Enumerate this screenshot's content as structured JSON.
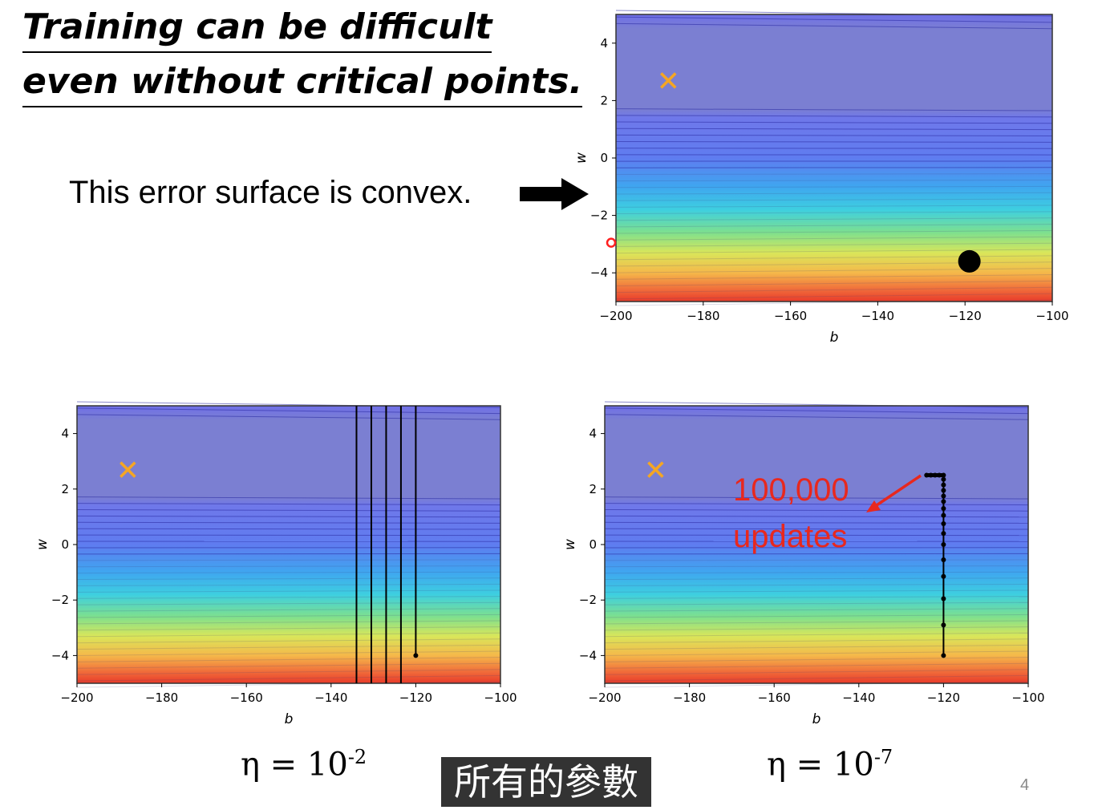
{
  "slide": {
    "title_line1": "Training can be difficult",
    "title_line2": "even without critical points.",
    "convex_text": "This error surface is convex.",
    "eta_left_base": "η = 10",
    "eta_left_exp": "-2",
    "eta_right_base": "η = 10",
    "eta_right_exp": "-7",
    "caption": "所有的參數",
    "page_number": "4"
  },
  "annotation": {
    "line1": "100,000",
    "line2": "updates",
    "color": "#e8281e"
  },
  "colors": {
    "target_marker": "#f5a623",
    "path": "#000000"
  },
  "chart_data": [
    {
      "type": "heatmap",
      "xlabel": "b",
      "ylabel": "w",
      "xlim": [
        -200,
        -100
      ],
      "ylim": [
        -5,
        5
      ],
      "x_ticks": [
        -200,
        -180,
        -160,
        -140,
        -120,
        -100
      ],
      "y_ticks": [
        -4,
        -2,
        0,
        2,
        4
      ],
      "target": {
        "b": -188,
        "w": 2.7
      },
      "start_point": {
        "b": -119,
        "w": -3.6
      }
    },
    {
      "type": "heatmap",
      "xlabel": "b",
      "ylabel": "w",
      "xlim": [
        -200,
        -100
      ],
      "ylim": [
        -5,
        5
      ],
      "x_ticks": [
        -200,
        -180,
        -160,
        -140,
        -120,
        -100
      ],
      "y_ticks": [
        -4,
        -2,
        0,
        2,
        4
      ],
      "target": {
        "b": -188,
        "w": 2.7
      },
      "path": {
        "start": {
          "b": -120,
          "w": -4
        },
        "vertical_lines_b": [
          -120,
          -123.5,
          -127,
          -130.5,
          -134
        ]
      }
    },
    {
      "type": "heatmap",
      "xlabel": "b",
      "ylabel": "w",
      "xlim": [
        -200,
        -100
      ],
      "ylim": [
        -5,
        5
      ],
      "x_ticks": [
        -200,
        -180,
        -160,
        -140,
        -120,
        -100
      ],
      "y_ticks": [
        -4,
        -2,
        0,
        2,
        4
      ],
      "target": {
        "b": -188,
        "w": 2.7
      },
      "path_points": [
        {
          "b": -120,
          "w": -4
        },
        {
          "b": -120,
          "w": -2.9
        },
        {
          "b": -120,
          "w": -1.95
        },
        {
          "b": -120,
          "w": -1.15
        },
        {
          "b": -120,
          "w": -0.55
        },
        {
          "b": -120,
          "w": 0
        },
        {
          "b": -120,
          "w": 0.4
        },
        {
          "b": -120,
          "w": 0.75
        },
        {
          "b": -120,
          "w": 1.05
        },
        {
          "b": -120,
          "w": 1.3
        },
        {
          "b": -120,
          "w": 1.55
        },
        {
          "b": -120,
          "w": 1.75
        },
        {
          "b": -120,
          "w": 1.95
        },
        {
          "b": -120,
          "w": 2.15
        },
        {
          "b": -120,
          "w": 2.35
        },
        {
          "b": -120,
          "w": 2.5
        },
        {
          "b": -121,
          "w": 2.5
        },
        {
          "b": -122,
          "w": 2.5
        },
        {
          "b": -123,
          "w": 2.5
        },
        {
          "b": -124,
          "w": 2.5
        }
      ]
    }
  ]
}
